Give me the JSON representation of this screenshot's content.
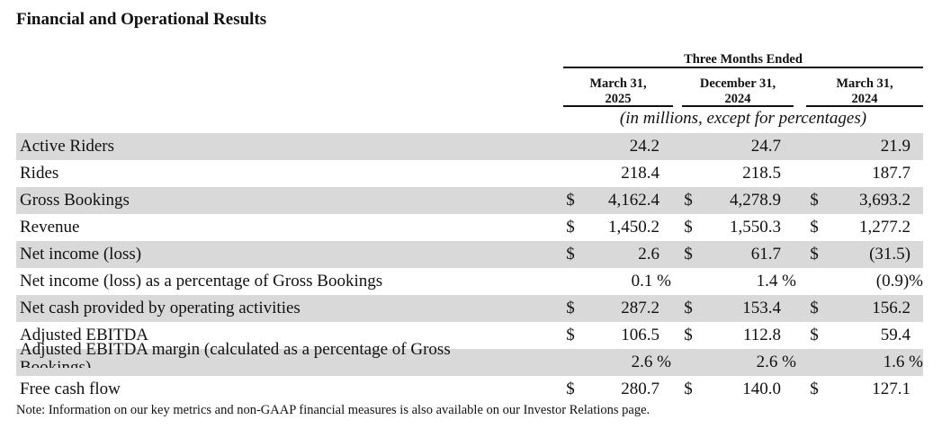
{
  "title": "Financial and Operational Results",
  "period_header": "Three Months Ended",
  "columns": [
    {
      "line1": "March 31,",
      "line2": "2025"
    },
    {
      "line1": "December 31,",
      "line2": "2024"
    },
    {
      "line1": "March 31,",
      "line2": "2024"
    }
  ],
  "units_note": "(in millions, except for percentages)",
  "rows": [
    {
      "label": "Active Riders",
      "c1": "",
      "v1": "24.2",
      "c2": "",
      "v2": "24.7",
      "c3": "",
      "v3": "21.9",
      "shaded": true
    },
    {
      "label": "Rides",
      "c1": "",
      "v1": "218.4",
      "c2": "",
      "v2": "218.5",
      "c3": "",
      "v3": "187.7",
      "shaded": false
    },
    {
      "label": "Gross Bookings",
      "c1": "$",
      "v1": "4,162.4",
      "c2": "$",
      "v2": "4,278.9",
      "c3": "$",
      "v3": "3,693.2",
      "shaded": true
    },
    {
      "label": "Revenue",
      "c1": "$",
      "v1": "1,450.2",
      "c2": "$",
      "v2": "1,550.3",
      "c3": "$",
      "v3": "1,277.2",
      "shaded": false
    },
    {
      "label": "Net income (loss)",
      "c1": "$",
      "v1": "2.6",
      "c2": "$",
      "v2": "61.7",
      "c3": "$",
      "v3": "(31.5)",
      "shaded": true
    },
    {
      "label": "Net income (loss) as a percentage of Gross Bookings",
      "c1": "",
      "v1": "0.1 %",
      "c2": "",
      "v2": "1.4 %",
      "c3": "",
      "v3": "(0.9)%",
      "shaded": false
    },
    {
      "label": "Net cash provided by operating activities",
      "c1": "$",
      "v1": "287.2",
      "c2": "$",
      "v2": "153.4",
      "c3": "$",
      "v3": "156.2",
      "shaded": true
    },
    {
      "label": "Adjusted EBITDA",
      "c1": "$",
      "v1": "106.5",
      "c2": "$",
      "v2": "112.8",
      "c3": "$",
      "v3": "59.4",
      "shaded": false
    },
    {
      "label": "Adjusted EBITDA margin (calculated as a percentage of Gross Bookings)",
      "c1": "",
      "v1": "2.6 %",
      "c2": "",
      "v2": "2.6 %",
      "c3": "",
      "v3": "1.6 %",
      "shaded": true
    },
    {
      "label": "Free cash flow",
      "c1": "$",
      "v1": "280.7",
      "c2": "$",
      "v2": "140.0",
      "c3": "$",
      "v3": "127.1",
      "shaded": false
    }
  ],
  "note": "Note: Information on our key metrics and non-GAAP financial measures is also available on our Investor Relations page."
}
